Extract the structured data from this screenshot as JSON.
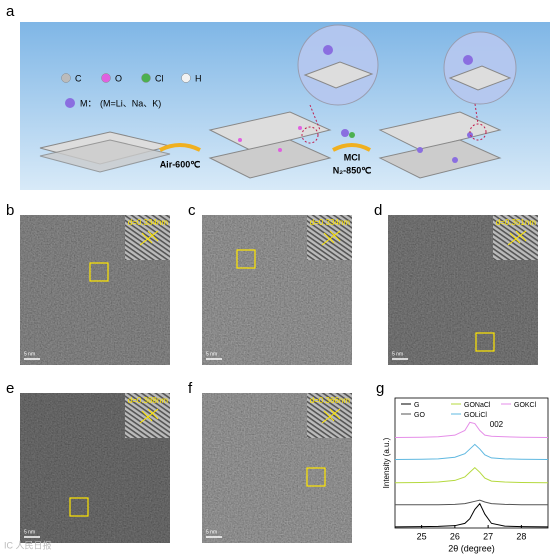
{
  "panel_a": {
    "label": "a",
    "atoms": [
      "C",
      "O",
      "Cl",
      "H"
    ],
    "metal_label": "M：",
    "metal_note": "(M=Li、Na、K)",
    "step1": "Air-600℃",
    "step2_top": "MCl",
    "step2_bottom": "N₂-850℃"
  },
  "tem_panels": [
    {
      "label": "b",
      "d_spacing": "d=0.334nm",
      "scale_bar": "5 nm"
    },
    {
      "label": "c",
      "d_spacing": "d=0.334nm",
      "scale_bar": "5 nm"
    },
    {
      "label": "d",
      "d_spacing": "d=0.351nm",
      "scale_bar": "5 nm"
    },
    {
      "label": "e",
      "d_spacing": "d=0.388nm",
      "scale_bar": "5 nm"
    },
    {
      "label": "f",
      "d_spacing": "d=0.366nm",
      "scale_bar": "5 nm"
    }
  ],
  "watermark": "IC 人民日报",
  "chart_data": {
    "type": "line",
    "label": "g",
    "xlabel": "2θ (degree)",
    "ylabel": "Intensity (a.u.)",
    "annotation": "002",
    "xlim": [
      24.2,
      28.8
    ],
    "xticks": [
      25,
      26,
      27,
      28
    ],
    "ylim": [
      0,
      5.6
    ],
    "x": [
      24.2,
      25,
      25.5,
      26,
      26.3,
      26.45,
      26.6,
      26.75,
      26.9,
      27.1,
      27.5,
      28,
      28.8
    ],
    "series": [
      {
        "name": "G",
        "color": "#000000",
        "values": [
          0.05,
          0.06,
          0.07,
          0.1,
          0.2,
          0.4,
          0.8,
          1.05,
          0.6,
          0.2,
          0.08,
          0.06,
          0.05
        ]
      },
      {
        "name": "GO",
        "color": "#555555",
        "values": [
          1.0,
          1.0,
          1.0,
          1.02,
          1.05,
          1.1,
          1.15,
          1.2,
          1.12,
          1.05,
          1.02,
          1.0,
          1.0
        ]
      },
      {
        "name": "GONaCl",
        "color": "#b5d93e",
        "values": [
          1.95,
          1.96,
          1.98,
          2.05,
          2.2,
          2.4,
          2.6,
          2.4,
          2.15,
          2.02,
          1.98,
          1.96,
          1.95
        ]
      },
      {
        "name": "GOLiCl",
        "color": "#5fb8e0",
        "values": [
          2.95,
          2.96,
          2.98,
          3.05,
          3.2,
          3.4,
          3.6,
          3.4,
          3.15,
          3.02,
          2.98,
          2.96,
          2.95
        ]
      },
      {
        "name": "GOKCl",
        "color": "#e58ee8",
        "values": [
          3.9,
          3.91,
          3.93,
          4.0,
          4.2,
          4.55,
          4.5,
          4.2,
          4.0,
          3.95,
          3.93,
          3.91,
          3.9
        ]
      }
    ]
  }
}
